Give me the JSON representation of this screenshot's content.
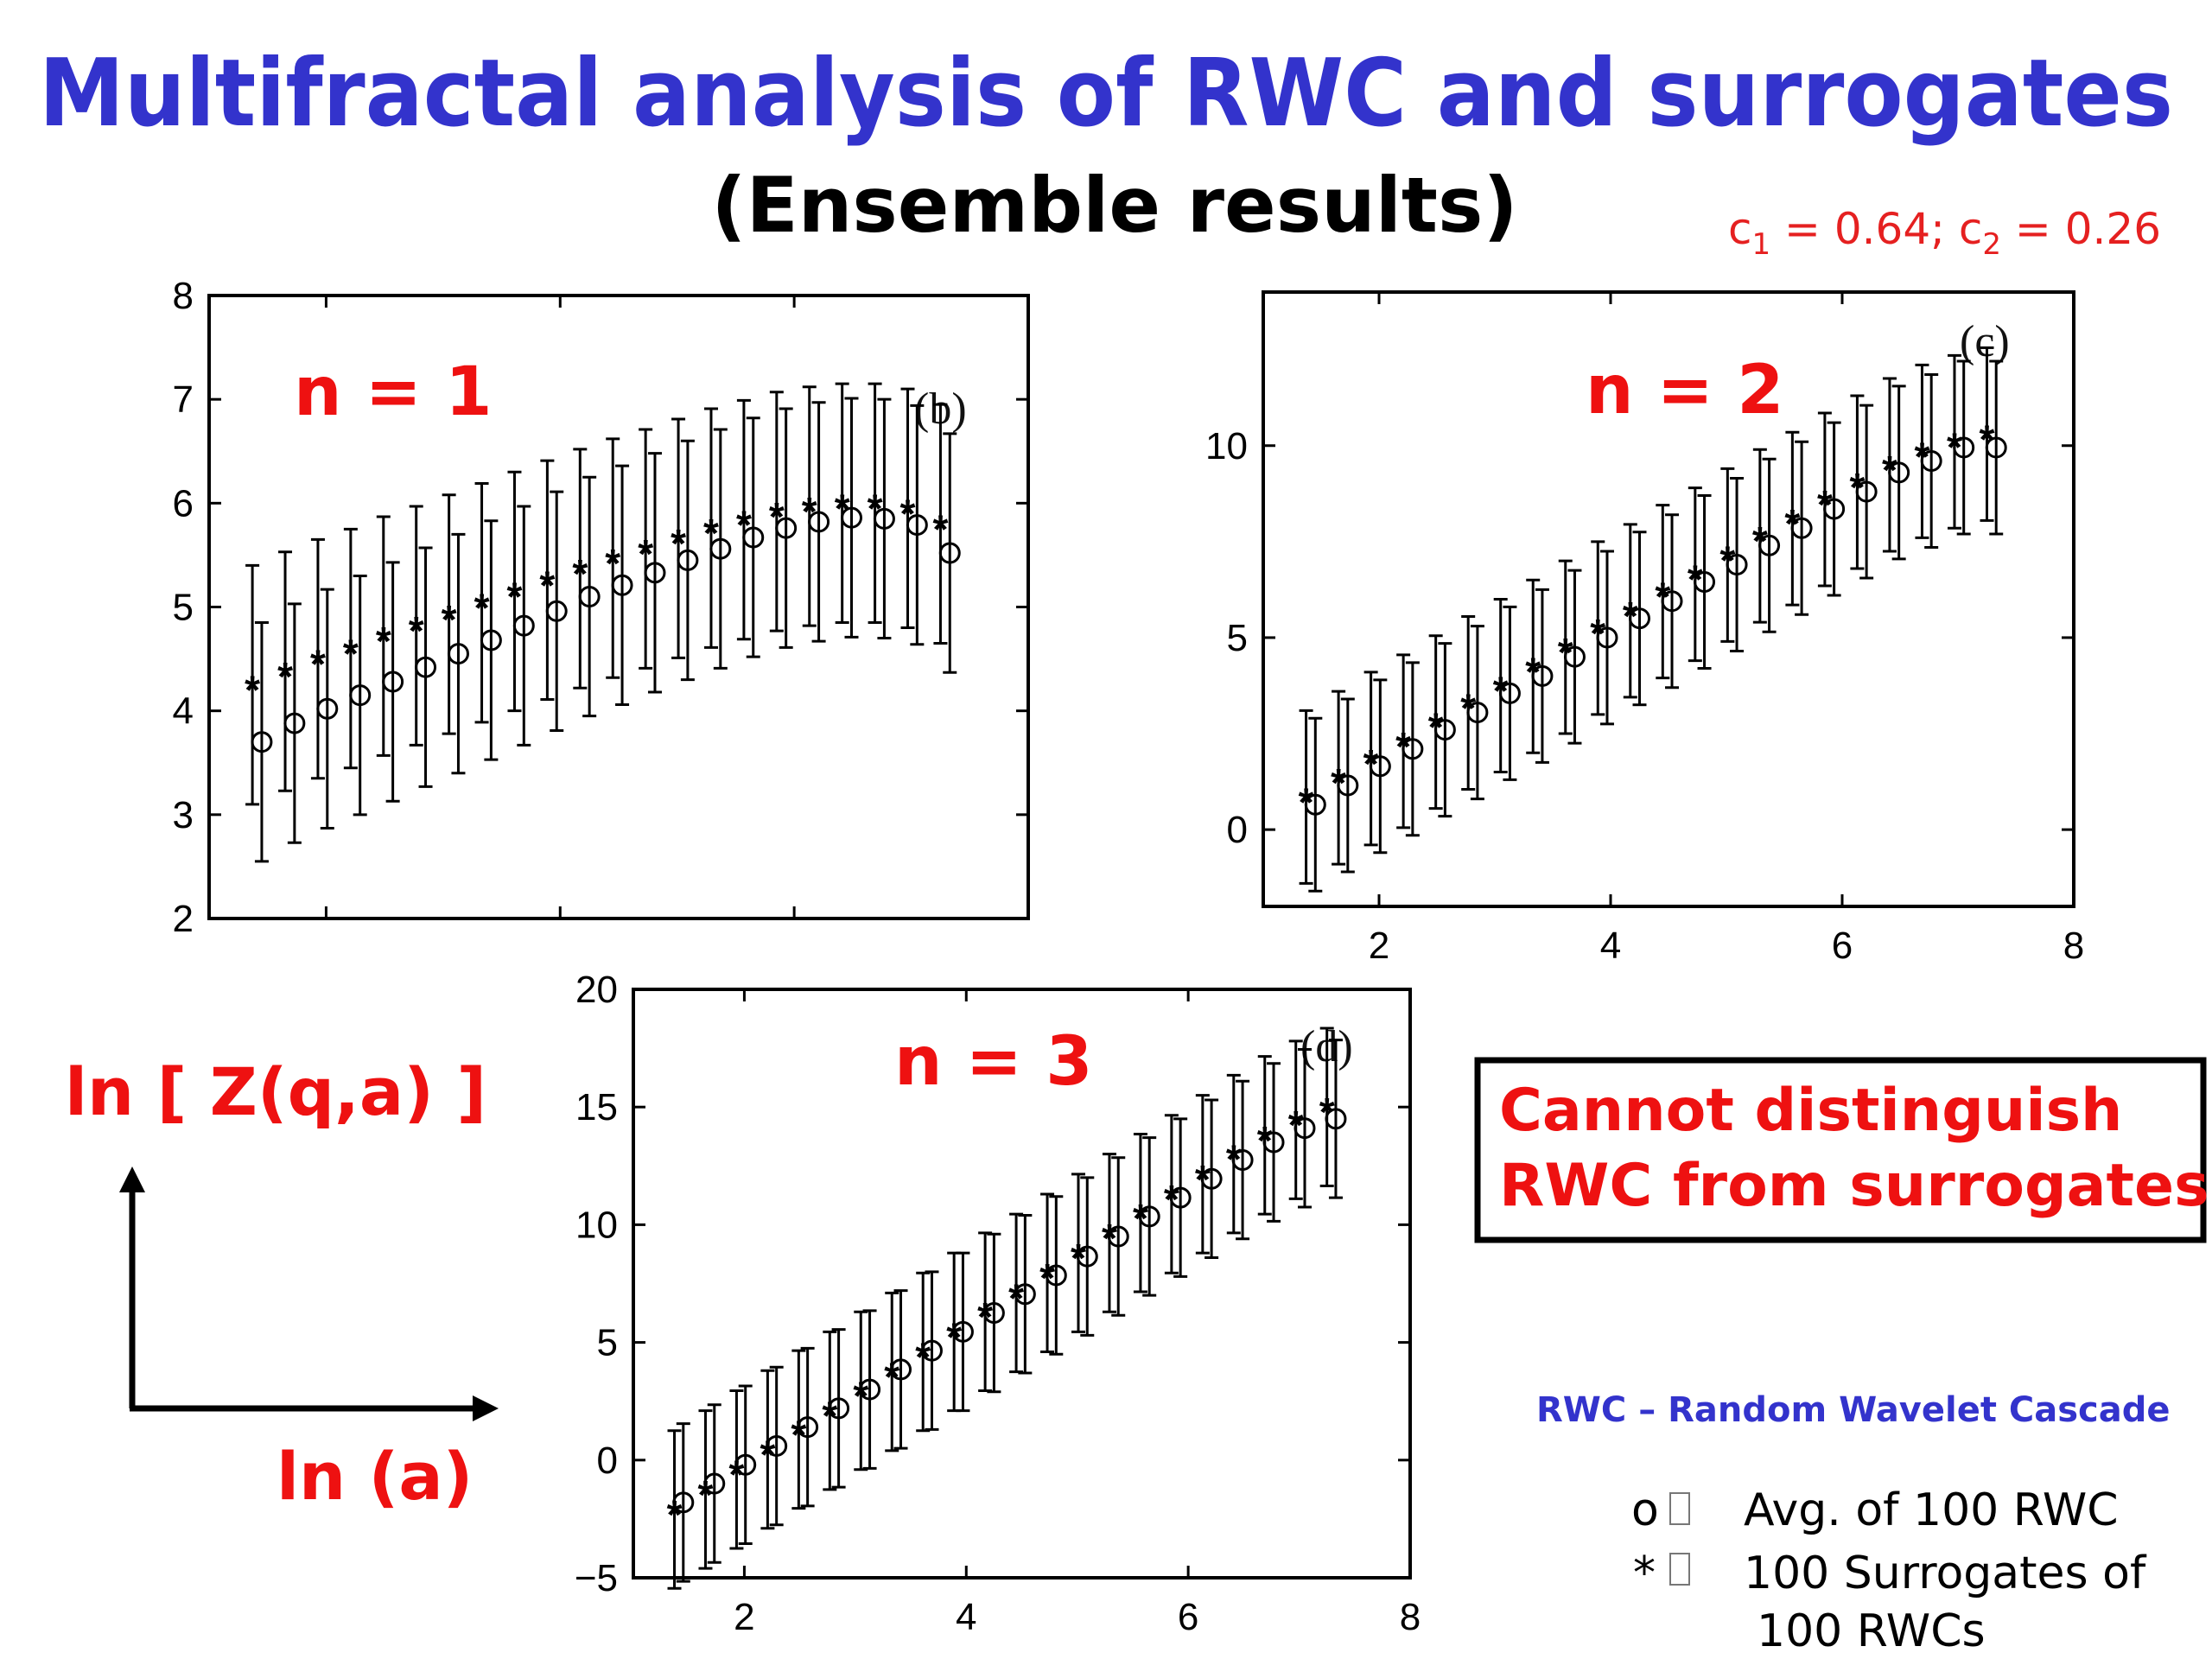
{
  "title": "Multifractal analysis of RWC and surrogates",
  "subtitle": "(Ensemble results)",
  "parameters": {
    "text": "c1 = 0.64; c2 = 0.26",
    "c1": "c",
    "c1_sub": "1",
    "c1_val": " = 0.64; ",
    "c2": "c",
    "c2_sub": "2",
    "c2_val": " = 0.26"
  },
  "axis_cartoon": {
    "y_label": "ln [ Z(q,a) ]",
    "x_label": "ln (a)"
  },
  "conclusion_box": {
    "line1": "Cannot distinguish",
    "line2": "RWC from surrogates"
  },
  "definition": "RWC – Random Wavelet Cascade",
  "legend": [
    {
      "symbol": "o",
      "lines": [
        "Avg. of 100 RWC"
      ]
    },
    {
      "symbol": "*",
      "lines": [
        "100 Surrogates of",
        "100 RWCs"
      ]
    }
  ],
  "colors": {
    "title": "#3333cc",
    "accent_red": "#ee1111",
    "text": "#000000"
  },
  "chart_data": [
    {
      "type": "scatter",
      "panel": "(b)",
      "annotation": "n = 1",
      "xlim": [
        1.0,
        8.0
      ],
      "ylim": [
        2,
        8
      ],
      "xticks": [],
      "yticks": [
        2,
        3,
        4,
        5,
        6,
        7,
        8
      ],
      "error_bars": true,
      "error_halfwidth": 1.15,
      "series": [
        {
          "marker": "o",
          "x": [
            1.45,
            1.73,
            2.01,
            2.29,
            2.57,
            2.85,
            3.13,
            3.41,
            3.69,
            3.97,
            4.25,
            4.53,
            4.81,
            5.09,
            5.37,
            5.65,
            5.93,
            6.21,
            6.49,
            6.77,
            7.05,
            7.33
          ],
          "y": [
            3.7,
            3.88,
            4.02,
            4.15,
            4.28,
            4.42,
            4.55,
            4.68,
            4.82,
            4.96,
            5.1,
            5.21,
            5.33,
            5.45,
            5.56,
            5.67,
            5.76,
            5.82,
            5.86,
            5.85,
            5.79,
            5.52
          ]
        },
        {
          "marker": "*",
          "x": [
            1.37,
            1.65,
            1.93,
            2.21,
            2.49,
            2.77,
            3.05,
            3.33,
            3.61,
            3.89,
            4.17,
            4.45,
            4.73,
            5.01,
            5.29,
            5.57,
            5.85,
            6.13,
            6.41,
            6.69,
            6.97,
            7.25
          ],
          "y": [
            4.25,
            4.38,
            4.5,
            4.6,
            4.72,
            4.82,
            4.93,
            5.04,
            5.15,
            5.26,
            5.37,
            5.47,
            5.56,
            5.66,
            5.76,
            5.84,
            5.92,
            5.97,
            6.0,
            6.0,
            5.95,
            5.8
          ]
        }
      ]
    },
    {
      "type": "scatter",
      "panel": "(c)",
      "annotation": "n = 2",
      "xlim": [
        1.0,
        8.0
      ],
      "ylim": [
        -2,
        14
      ],
      "xticks": [
        2,
        4,
        6,
        8
      ],
      "yticks": [
        0,
        5,
        10
      ],
      "error_bars": true,
      "error_halfwidth": 2.25,
      "series": [
        {
          "marker": "o",
          "x": [
            1.45,
            1.73,
            2.01,
            2.29,
            2.57,
            2.85,
            3.13,
            3.41,
            3.69,
            3.97,
            4.25,
            4.53,
            4.81,
            5.09,
            5.37,
            5.65,
            5.93,
            6.21,
            6.49,
            6.77,
            7.05,
            7.33
          ],
          "y": [
            0.65,
            1.15,
            1.65,
            2.1,
            2.6,
            3.05,
            3.55,
            4.0,
            4.5,
            5.0,
            5.5,
            5.95,
            6.45,
            6.9,
            7.4,
            7.85,
            8.35,
            8.8,
            9.3,
            9.6,
            9.95,
            9.95
          ]
        },
        {
          "marker": "*",
          "x": [
            1.37,
            1.65,
            1.93,
            2.21,
            2.49,
            2.77,
            3.05,
            3.33,
            3.61,
            3.89,
            4.17,
            4.45,
            4.73,
            5.01,
            5.29,
            5.57,
            5.85,
            6.13,
            6.41,
            6.69,
            6.97,
            7.25
          ],
          "y": [
            0.85,
            1.35,
            1.85,
            2.3,
            2.8,
            3.3,
            3.75,
            4.25,
            4.75,
            5.25,
            5.7,
            6.2,
            6.65,
            7.15,
            7.65,
            8.1,
            8.6,
            9.05,
            9.5,
            9.85,
            10.1,
            10.3
          ]
        }
      ]
    },
    {
      "type": "scatter",
      "panel": "(d)",
      "annotation": "n = 3",
      "xlim": [
        1.0,
        8.0
      ],
      "ylim": [
        -5,
        20
      ],
      "xticks": [
        2,
        4,
        6,
        8
      ],
      "yticks": [
        -5,
        0,
        5,
        10,
        15,
        20
      ],
      "error_bars": true,
      "error_halfwidth": 3.35,
      "series": [
        {
          "marker": "o",
          "x": [
            1.45,
            1.73,
            2.01,
            2.29,
            2.57,
            2.85,
            3.13,
            3.41,
            3.69,
            3.97,
            4.25,
            4.53,
            4.81,
            5.09,
            5.37,
            5.65,
            5.93,
            6.21,
            6.49,
            6.77,
            7.05,
            7.33
          ],
          "y": [
            -1.8,
            -1.0,
            -0.2,
            0.6,
            1.4,
            2.2,
            3.0,
            3.85,
            4.65,
            5.45,
            6.25,
            7.05,
            7.85,
            8.65,
            9.5,
            10.35,
            11.15,
            11.95,
            12.75,
            13.5,
            14.1,
            14.5
          ]
        },
        {
          "marker": "*",
          "x": [
            1.37,
            1.65,
            1.93,
            2.21,
            2.49,
            2.77,
            3.05,
            3.33,
            3.61,
            3.89,
            4.17,
            4.45,
            4.73,
            5.01,
            5.29,
            5.57,
            5.85,
            6.13,
            6.41,
            6.69,
            6.97,
            7.25
          ],
          "y": [
            -2.1,
            -1.25,
            -0.4,
            0.45,
            1.3,
            2.1,
            2.95,
            3.75,
            4.6,
            5.45,
            6.3,
            7.1,
            7.95,
            8.8,
            9.65,
            10.5,
            11.3,
            12.15,
            13.0,
            13.8,
            14.45,
            15.0
          ]
        }
      ]
    }
  ]
}
